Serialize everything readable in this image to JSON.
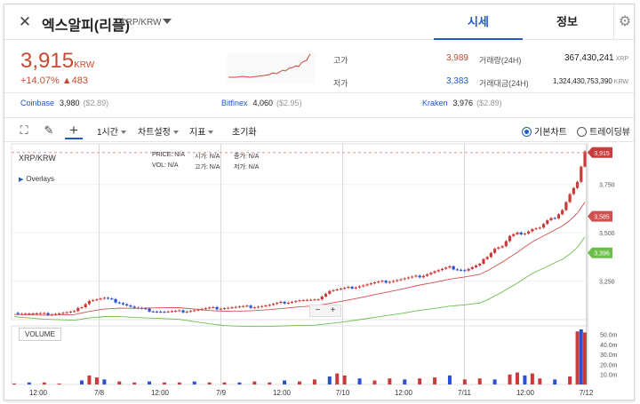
{
  "header": {
    "coin_name": "엑스알피(리플)",
    "pair": "XRP/KRW",
    "tabs": [
      "시세",
      "정보"
    ]
  },
  "price": {
    "current": "3,915",
    "unit": "KRW",
    "change_pct": "+14.07%",
    "change_abs": "▲483"
  },
  "stats": {
    "high_label": "고가",
    "high": "3,989",
    "low_label": "저가",
    "low": "3,383",
    "volume_label": "거래량(24H)",
    "volume": "367,430,241",
    "volume_unit": "XRP",
    "amount_label": "거래대금(24H)",
    "amount": "1,324,430,753,390",
    "amount_unit": "KRW"
  },
  "exchanges": [
    {
      "name": "Coinbase",
      "price": "3,980",
      "pct": "($2.89)"
    },
    {
      "name": "Bitfinex",
      "price": "4,060",
      "pct": "($2.95)"
    },
    {
      "name": "Kraken",
      "price": "3,976",
      "pct": "($2.89)"
    }
  ],
  "toolbar": {
    "interval": "1시간",
    "chart_settings": "차트설정",
    "indicators": "지표",
    "reset": "초기화",
    "basic_chart": "기본차트",
    "tradingview": "트레이딩뷰"
  },
  "chart": {
    "pair": "XRP/KRW",
    "overlays": "Overlays",
    "ohlc": [
      {
        "label": "PRICE:",
        "value": "N/A"
      },
      {
        "label": "시가:",
        "value": "N/A"
      },
      {
        "label": "종가:",
        "value": "N/A"
      },
      {
        "label": "VOL:",
        "value": "N/A"
      },
      {
        "label": "고가:",
        "value": "N/A"
      },
      {
        "label": "저가:",
        "value": "N/A"
      }
    ],
    "volume_label": "VOLUME",
    "zoom_minus": "−",
    "zoom_plus": "+",
    "current_badge": "3,915",
    "ma1_badge": "3,585",
    "ma2_badge": "3,396",
    "colors": {
      "up": "#c83c3c",
      "down": "#2850d2",
      "ma1": "#d05050",
      "ma2": "#6cbe4a",
      "last": "#e08080"
    }
  },
  "chart_data": {
    "type": "line",
    "title": "XRP/KRW",
    "y_ticks": [
      3250,
      3500,
      3750
    ],
    "y_tick_labels": [
      "3,250",
      "3,500",
      "3,750"
    ],
    "ylim": [
      3050,
      3960
    ],
    "x_tick_labels": [
      "12:00",
      "7/8",
      "12:00",
      "7/9",
      "12:00",
      "7/10",
      "12:00",
      "7/11",
      "12:00",
      "7/12"
    ],
    "volume_ticks": [
      "50.0m",
      "40.0m",
      "30.0m",
      "20.0m",
      "10.0m"
    ],
    "volume_max": 55,
    "last_price": 3915,
    "ma_values": {
      "ma1": 3585,
      "ma2": 3396
    },
    "close_points": [
      [
        0,
        3085
      ],
      [
        8,
        3078
      ],
      [
        16,
        3090
      ],
      [
        20,
        3150
      ],
      [
        24,
        3160
      ],
      [
        28,
        3140
      ],
      [
        32,
        3110
      ],
      [
        36,
        3098
      ],
      [
        40,
        3090
      ],
      [
        44,
        3092
      ],
      [
        48,
        3100
      ],
      [
        52,
        3108
      ],
      [
        56,
        3112
      ],
      [
        60,
        3115
      ],
      [
        64,
        3118
      ],
      [
        68,
        3125
      ],
      [
        72,
        3140
      ],
      [
        76,
        3150
      ],
      [
        80,
        3148
      ],
      [
        84,
        3200
      ],
      [
        88,
        3210
      ],
      [
        92,
        3225
      ],
      [
        96,
        3240
      ],
      [
        100,
        3250
      ],
      [
        104,
        3262
      ],
      [
        108,
        3275
      ],
      [
        112,
        3300
      ],
      [
        116,
        3320
      ],
      [
        120,
        3305
      ],
      [
        124,
        3335
      ],
      [
        126,
        3380
      ],
      [
        128,
        3420
      ],
      [
        130,
        3430
      ],
      [
        132,
        3480
      ],
      [
        134,
        3495
      ],
      [
        136,
        3500
      ],
      [
        138,
        3520
      ],
      [
        140,
        3525
      ],
      [
        142,
        3560
      ],
      [
        144,
        3580
      ],
      [
        146,
        3620
      ],
      [
        148,
        3700
      ],
      [
        150,
        3760
      ],
      [
        152,
        3915
      ]
    ],
    "volume_points": [
      [
        0,
        1
      ],
      [
        4,
        2
      ],
      [
        8,
        2
      ],
      [
        12,
        1
      ],
      [
        18,
        4
      ],
      [
        20,
        9
      ],
      [
        22,
        7
      ],
      [
        24,
        5
      ],
      [
        28,
        3
      ],
      [
        32,
        2
      ],
      [
        36,
        3
      ],
      [
        40,
        2
      ],
      [
        44,
        2
      ],
      [
        48,
        3
      ],
      [
        52,
        2
      ],
      [
        56,
        2
      ],
      [
        60,
        2
      ],
      [
        64,
        3
      ],
      [
        68,
        2
      ],
      [
        72,
        4
      ],
      [
        76,
        3
      ],
      [
        80,
        5
      ],
      [
        84,
        8
      ],
      [
        86,
        11
      ],
      [
        88,
        9
      ],
      [
        92,
        6
      ],
      [
        96,
        4
      ],
      [
        100,
        6
      ],
      [
        104,
        5
      ],
      [
        108,
        6
      ],
      [
        112,
        7
      ],
      [
        116,
        9
      ],
      [
        120,
        5
      ],
      [
        124,
        6
      ],
      [
        128,
        5
      ],
      [
        132,
        10
      ],
      [
        134,
        12
      ],
      [
        136,
        9
      ],
      [
        138,
        11
      ],
      [
        140,
        6
      ],
      [
        144,
        5
      ],
      [
        148,
        8
      ],
      [
        150,
        53
      ],
      [
        151,
        55
      ],
      [
        152,
        52
      ]
    ]
  }
}
